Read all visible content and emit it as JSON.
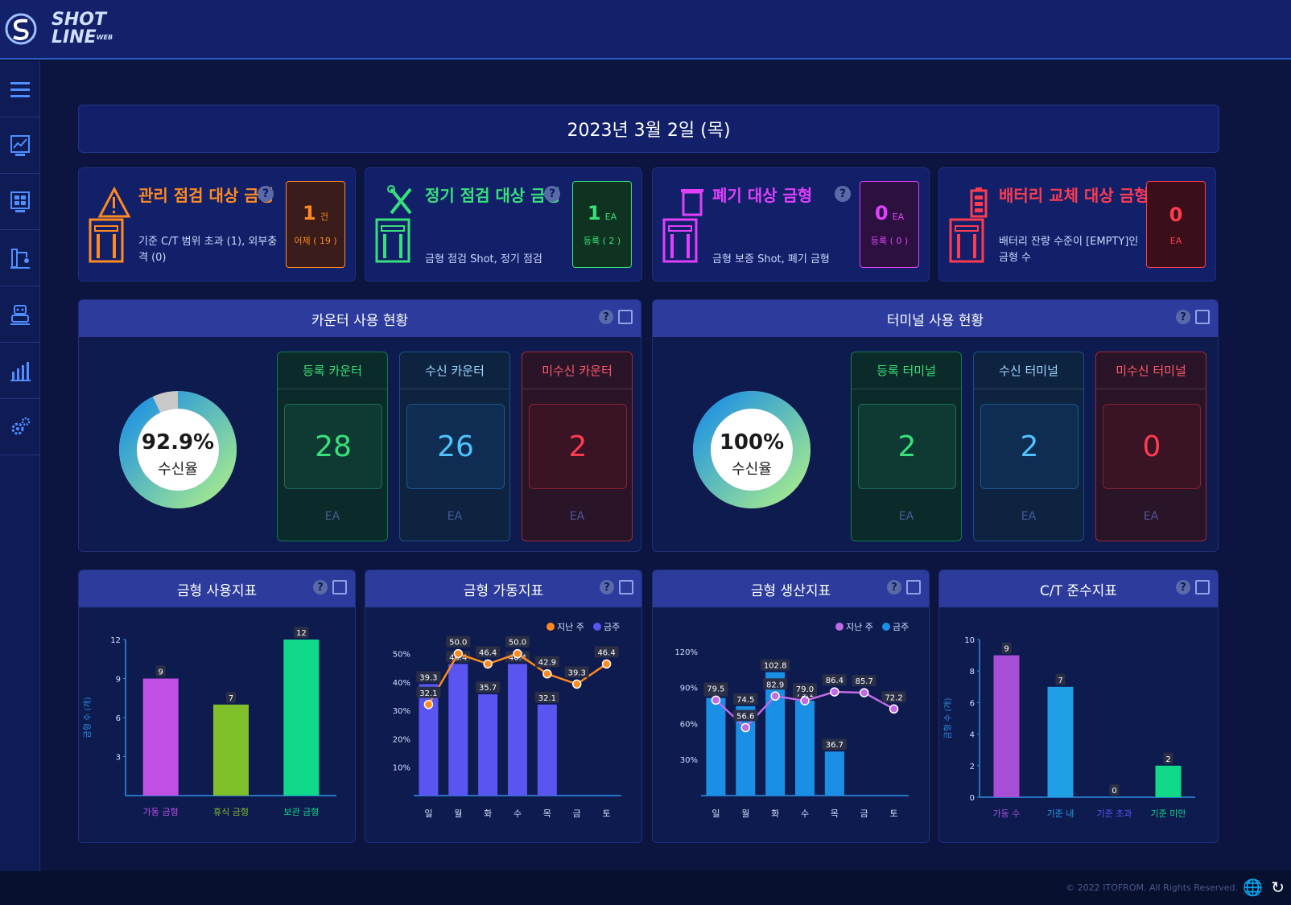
{
  "app": {
    "logo_line1": "SHOT",
    "logo_line2": "LINE",
    "logo_sub": "WEB"
  },
  "sidebar": {
    "items": [
      {
        "icon": "menu-icon"
      },
      {
        "icon": "dashboard-chart-icon"
      },
      {
        "icon": "monitor-grid-icon"
      },
      {
        "icon": "machine-icon"
      },
      {
        "icon": "robot-icon"
      },
      {
        "icon": "bar-chart-icon"
      },
      {
        "icon": "settings-gear-icon"
      }
    ]
  },
  "date": "2023년 3월 2일 (목)",
  "cards": [
    {
      "title": "관리 점검 대상 금형",
      "color": "#ff8a1f",
      "desc": "기준 C/T 범위 초과 (1), 외부충격 (0)",
      "num": "1",
      "unit": "건",
      "sub": "어제 ( 19 )",
      "icon": "warning-machine-icon"
    },
    {
      "title": "정기 점검 대상 금형",
      "color": "#38e07a",
      "desc": "금형 점검 Shot, 정기 점검",
      "num": "1",
      "unit": "EA",
      "sub": "등록 ( 2 )",
      "icon": "tools-machine-icon"
    },
    {
      "title": "폐기 대상 금형",
      "color": "#e040fb",
      "desc": "금형 보증 Shot, 폐기 금형",
      "num": "0",
      "unit": "EA",
      "sub": "등록 ( 0 )",
      "icon": "trash-machine-icon"
    },
    {
      "title": "배터리 교체 대상 금형",
      "color": "#ff3b4f",
      "desc": "배터리 잔량 수준이 [EMPTY]인 금형 수",
      "num": "0",
      "unit": "",
      "sub": "EA",
      "icon": "battery-machine-icon"
    }
  ],
  "counter": {
    "title": "카운터 사용 현황",
    "rate": "92.9%",
    "rate_label": "수신율",
    "rate_value": 0.929,
    "stats": [
      {
        "label": "등록 카운터",
        "value": "28",
        "unit": "EA"
      },
      {
        "label": "수신 카운터",
        "value": "26",
        "unit": "EA"
      },
      {
        "label": "미수신 카운터",
        "value": "2",
        "unit": "EA"
      }
    ]
  },
  "terminal": {
    "title": "터미널 사용 현황",
    "rate": "100%",
    "rate_label": "수신율",
    "rate_value": 1.0,
    "stats": [
      {
        "label": "등록 터미널",
        "value": "2",
        "unit": "EA"
      },
      {
        "label": "수신 터미널",
        "value": "2",
        "unit": "EA"
      },
      {
        "label": "미수신 터미널",
        "value": "0",
        "unit": "EA"
      }
    ]
  },
  "help_mark": "?",
  "chart_data": [
    {
      "type": "bar",
      "title": "금형 사용지표",
      "ylabel": "금형 수 (개)",
      "categories": [
        "가동 금형",
        "휴식 금형",
        "보관 금형"
      ],
      "values": [
        9,
        7,
        12
      ],
      "colors": [
        "#c04fe6",
        "#7fbf2a",
        "#11d98a"
      ],
      "ylim": [
        0,
        12
      ],
      "yticks": [
        3,
        6,
        9,
        12
      ]
    },
    {
      "type": "bar+line",
      "title": "금형 가동지표",
      "categories": [
        "일",
        "월",
        "화",
        "수",
        "목",
        "금",
        "토"
      ],
      "series": [
        {
          "name": "지난 주",
          "type": "line",
          "color": "#ff8a1f",
          "values": [
            32.1,
            50.0,
            46.4,
            50.0,
            42.9,
            39.3,
            46.4
          ]
        },
        {
          "name": "금주",
          "type": "bar",
          "color": "#5a55f0",
          "values": [
            39.3,
            46.4,
            35.7,
            46.4,
            32.1,
            null,
            null
          ]
        }
      ],
      "ylim": [
        0,
        55
      ],
      "yticks": [
        "10%",
        "20%",
        "30%",
        "40%",
        "50%"
      ],
      "ytick_values": [
        10,
        20,
        30,
        40,
        50
      ]
    },
    {
      "type": "bar+line",
      "title": "금형 생산지표",
      "categories": [
        "일",
        "월",
        "화",
        "수",
        "목",
        "금",
        "토"
      ],
      "series": [
        {
          "name": "지난 주",
          "type": "line",
          "color": "#c06ae6",
          "values": [
            79.5,
            56.6,
            82.9,
            79.0,
            86.4,
            85.7,
            72.2
          ]
        },
        {
          "name": "금주",
          "type": "bar",
          "color": "#1a8fe6",
          "values": [
            81.3,
            74.5,
            102.8,
            79.1,
            36.7,
            null,
            null
          ]
        }
      ],
      "ylim": [
        0,
        130
      ],
      "yticks": [
        "30%",
        "60%",
        "90%",
        "120%"
      ],
      "ytick_values": [
        30,
        60,
        90,
        120
      ]
    },
    {
      "type": "bar",
      "title": "C/T 준수지표",
      "ylabel": "금형 수 (개)",
      "categories": [
        "가동 수",
        "기준 내",
        "기준 초과",
        "기준 미만"
      ],
      "values": [
        9,
        7,
        0,
        2
      ],
      "colors": [
        "#a74fd6",
        "#1f9fe6",
        "#5a55f0",
        "#11d98a"
      ],
      "ylim": [
        0,
        10
      ],
      "yticks": [
        0,
        2,
        4,
        6,
        8,
        10
      ]
    }
  ],
  "footer": {
    "copyright": "© 2022 ITOFROM. All Rights Reserved."
  }
}
